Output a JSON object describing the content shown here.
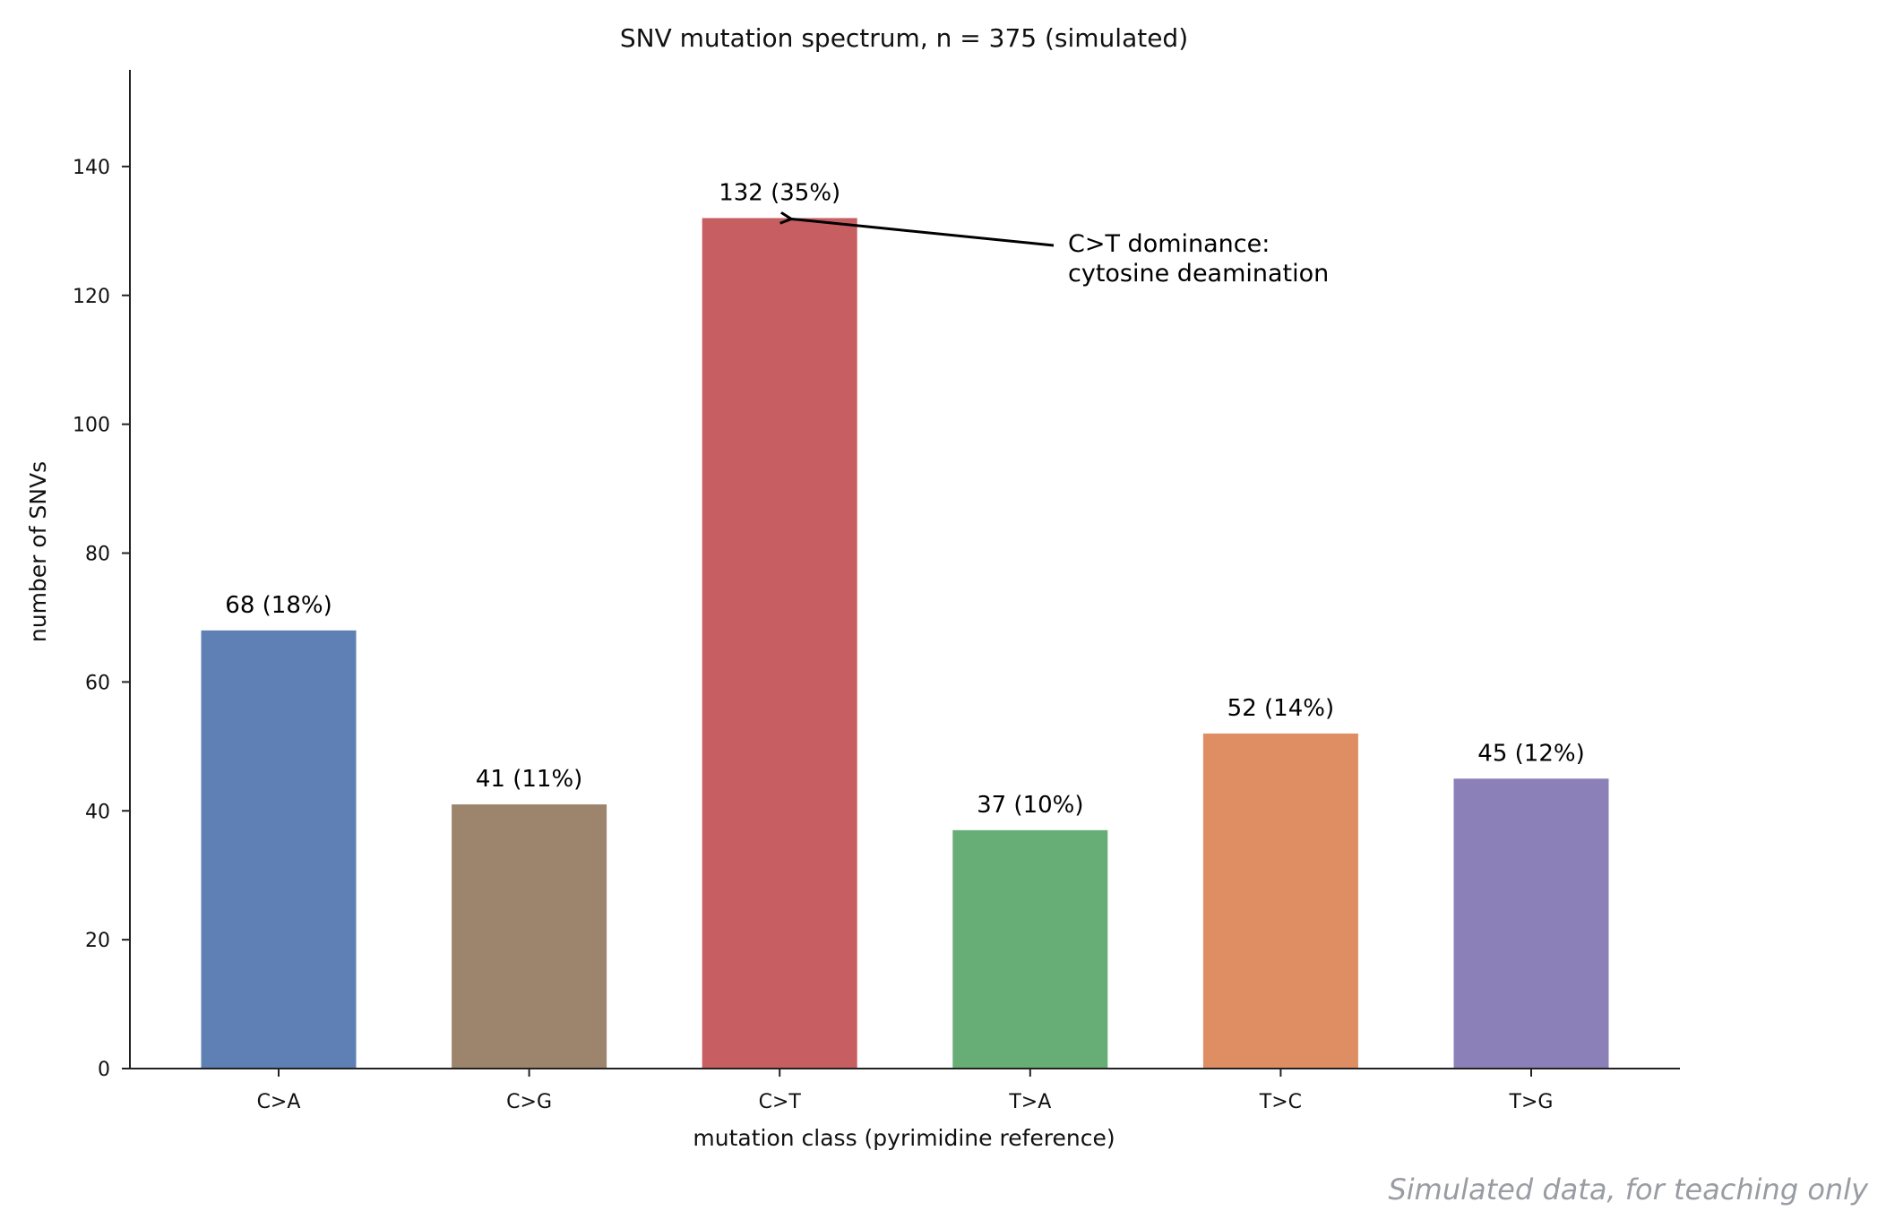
{
  "chart_data": {
    "type": "bar",
    "title": "SNV mutation spectrum, n = 375 (simulated)",
    "xlabel": "mutation class (pyrimidine reference)",
    "ylabel": "number of SNVs",
    "categories": [
      "C>A",
      "C>G",
      "C>T",
      "T>A",
      "T>C",
      "T>G"
    ],
    "values": [
      68,
      41,
      132,
      37,
      52,
      45
    ],
    "data_labels": [
      "68 (18%)",
      "41 (11%)",
      "132 (35%)",
      "37 (10%)",
      "52 (14%)",
      "45 (12%)"
    ],
    "colors": [
      "#5f80b4",
      "#9c846d",
      "#c75f62",
      "#67ad76",
      "#df8e64",
      "#8c80b8"
    ],
    "ylim": [
      0,
      155
    ],
    "yticks": [
      0,
      20,
      40,
      60,
      80,
      100,
      120,
      140
    ],
    "grid": false,
    "legend": "none",
    "annotation": {
      "lines": [
        "C>T dominance:",
        "cytosine deamination"
      ],
      "target_category": "C>T",
      "target_value": 132
    }
  },
  "footnote": "Simulated data, for teaching only"
}
